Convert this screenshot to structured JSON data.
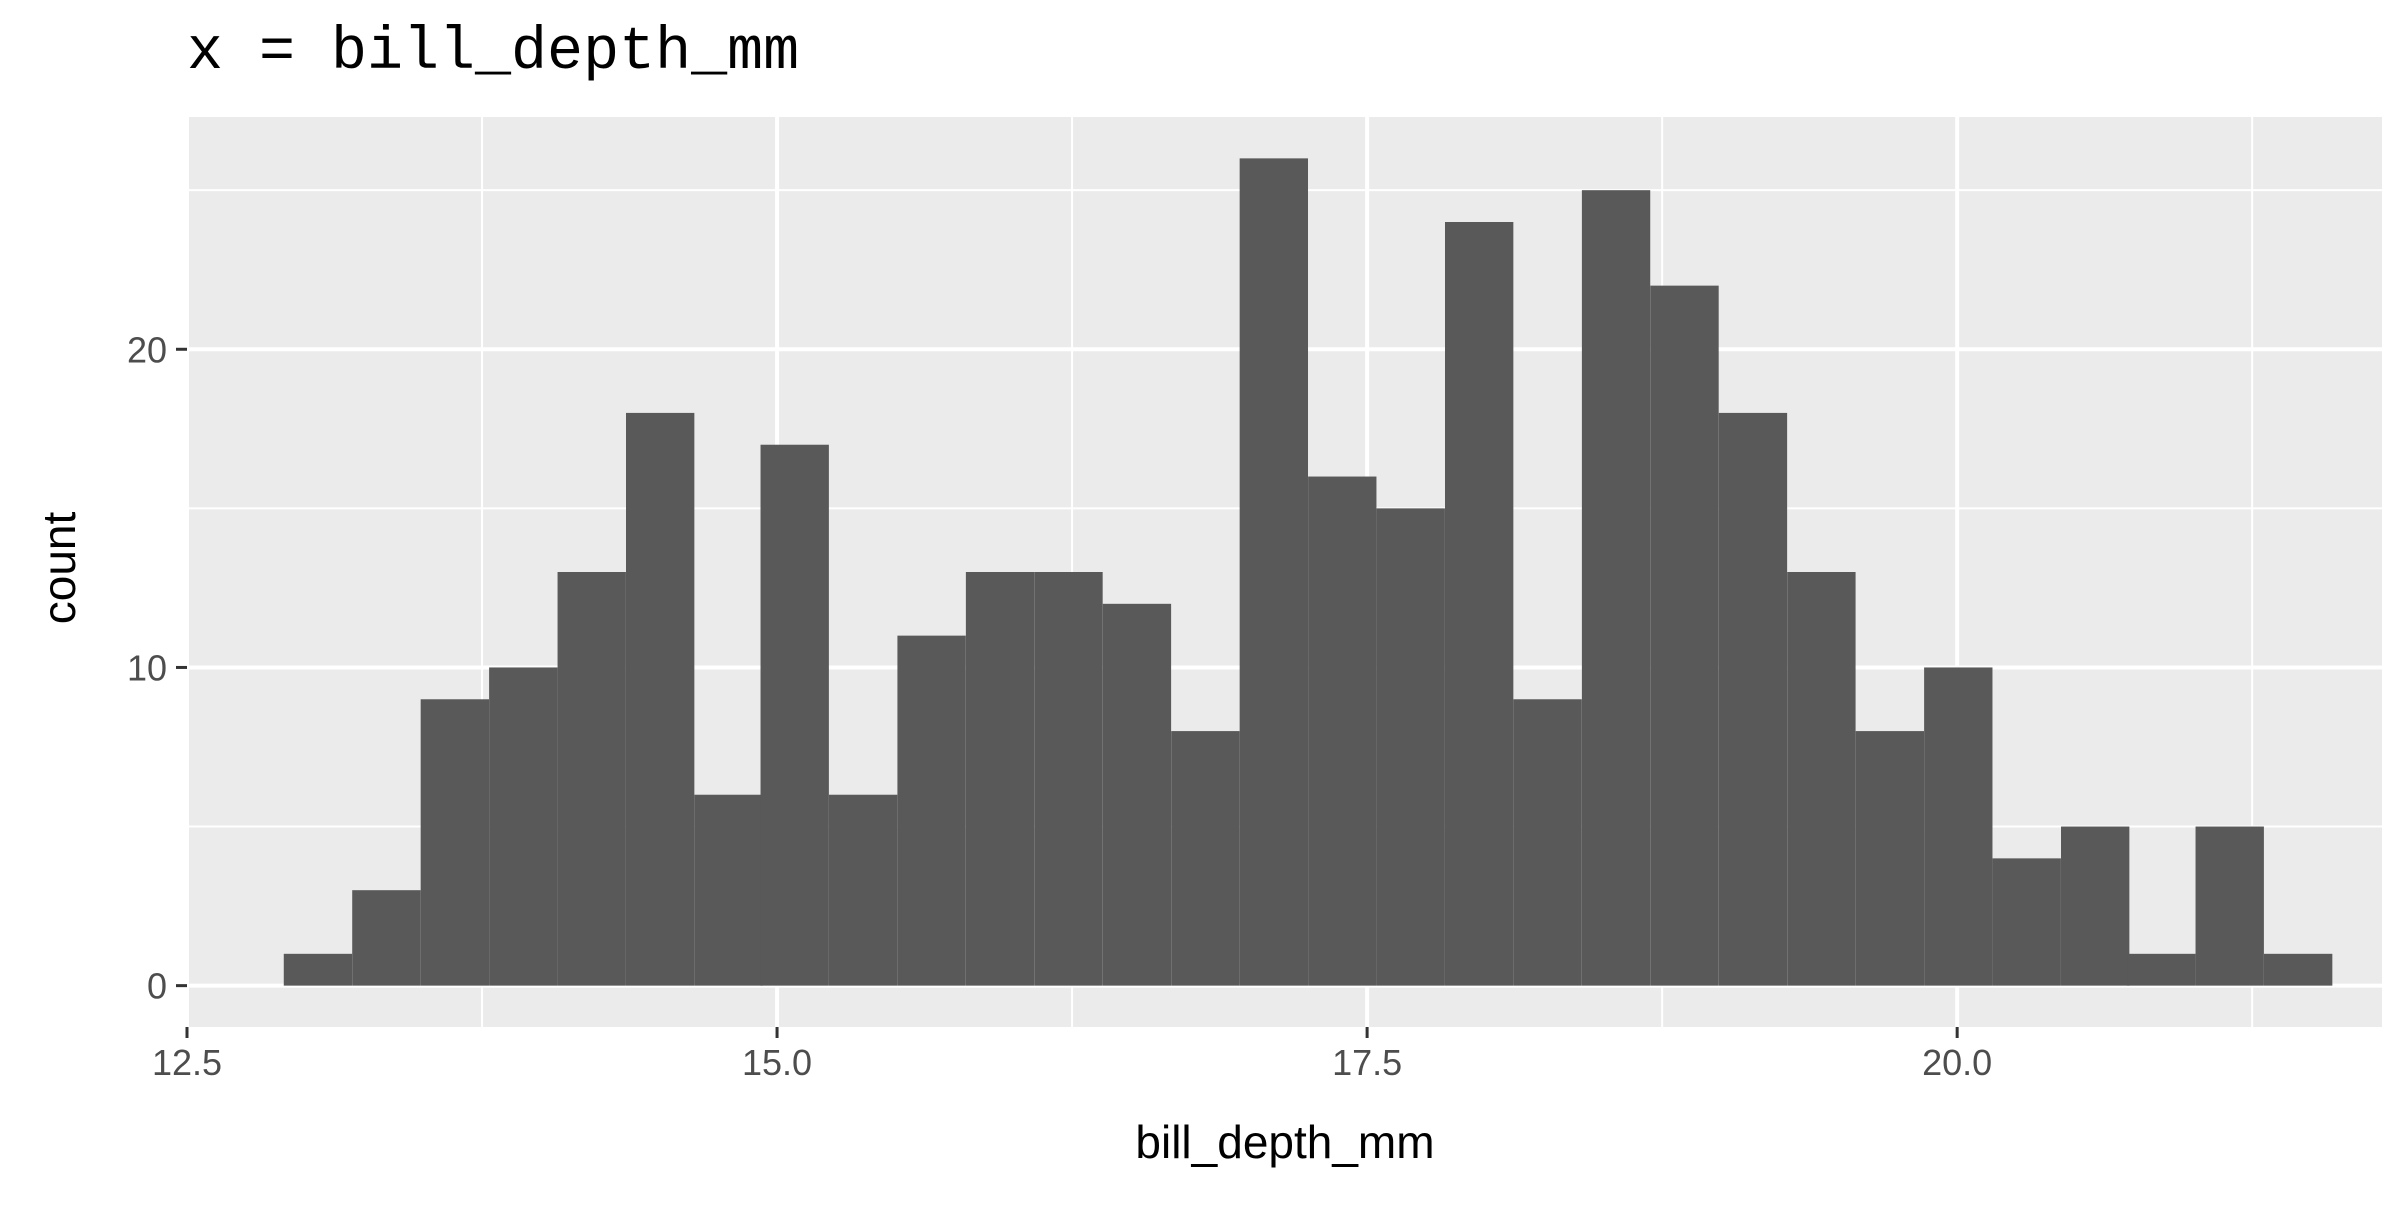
{
  "chart_data": {
    "type": "bar",
    "title": "x = bill_depth_mm",
    "xlabel": "bill_depth_mm",
    "ylabel": "count",
    "xlim": [
      12.5,
      21.8
    ],
    "ylim": [
      -1.3,
      27.3
    ],
    "x_ticks": [
      12.5,
      15.0,
      17.5,
      20.0
    ],
    "x_tick_labels": [
      "12.5",
      "15.0",
      "17.5",
      "20.0"
    ],
    "y_ticks": [
      0,
      10,
      20
    ],
    "y_tick_labels": [
      "0",
      "10",
      "20"
    ],
    "grid": true,
    "bin_width": 0.2896,
    "bins": [
      {
        "x_start": 12.91,
        "count": 1
      },
      {
        "x_start": 13.2,
        "count": 3
      },
      {
        "x_start": 13.49,
        "count": 9
      },
      {
        "x_start": 13.78,
        "count": 10
      },
      {
        "x_start": 14.07,
        "count": 13
      },
      {
        "x_start": 14.36,
        "count": 18
      },
      {
        "x_start": 14.65,
        "count": 6
      },
      {
        "x_start": 14.93,
        "count": 17
      },
      {
        "x_start": 15.22,
        "count": 6
      },
      {
        "x_start": 15.51,
        "count": 11
      },
      {
        "x_start": 15.8,
        "count": 13
      },
      {
        "x_start": 16.09,
        "count": 13
      },
      {
        "x_start": 16.38,
        "count": 12
      },
      {
        "x_start": 16.67,
        "count": 8
      },
      {
        "x_start": 16.96,
        "count": 26
      },
      {
        "x_start": 17.25,
        "count": 16
      },
      {
        "x_start": 17.54,
        "count": 15
      },
      {
        "x_start": 17.83,
        "count": 24
      },
      {
        "x_start": 18.12,
        "count": 9
      },
      {
        "x_start": 18.41,
        "count": 25
      },
      {
        "x_start": 18.7,
        "count": 22
      },
      {
        "x_start": 18.99,
        "count": 18
      },
      {
        "x_start": 19.28,
        "count": 13
      },
      {
        "x_start": 19.57,
        "count": 8
      },
      {
        "x_start": 19.86,
        "count": 10
      },
      {
        "x_start": 20.15,
        "count": 4
      },
      {
        "x_start": 20.44,
        "count": 5
      },
      {
        "x_start": 20.72,
        "count": 1
      },
      {
        "x_start": 21.01,
        "count": 5
      },
      {
        "x_start": 21.3,
        "count": 1
      }
    ],
    "colors": {
      "bar_fill": "#595959",
      "panel_background": "#ebebeb",
      "grid_line": "#ffffff",
      "tick_label": "#4d4d4d",
      "tick_mark": "#333333"
    }
  }
}
